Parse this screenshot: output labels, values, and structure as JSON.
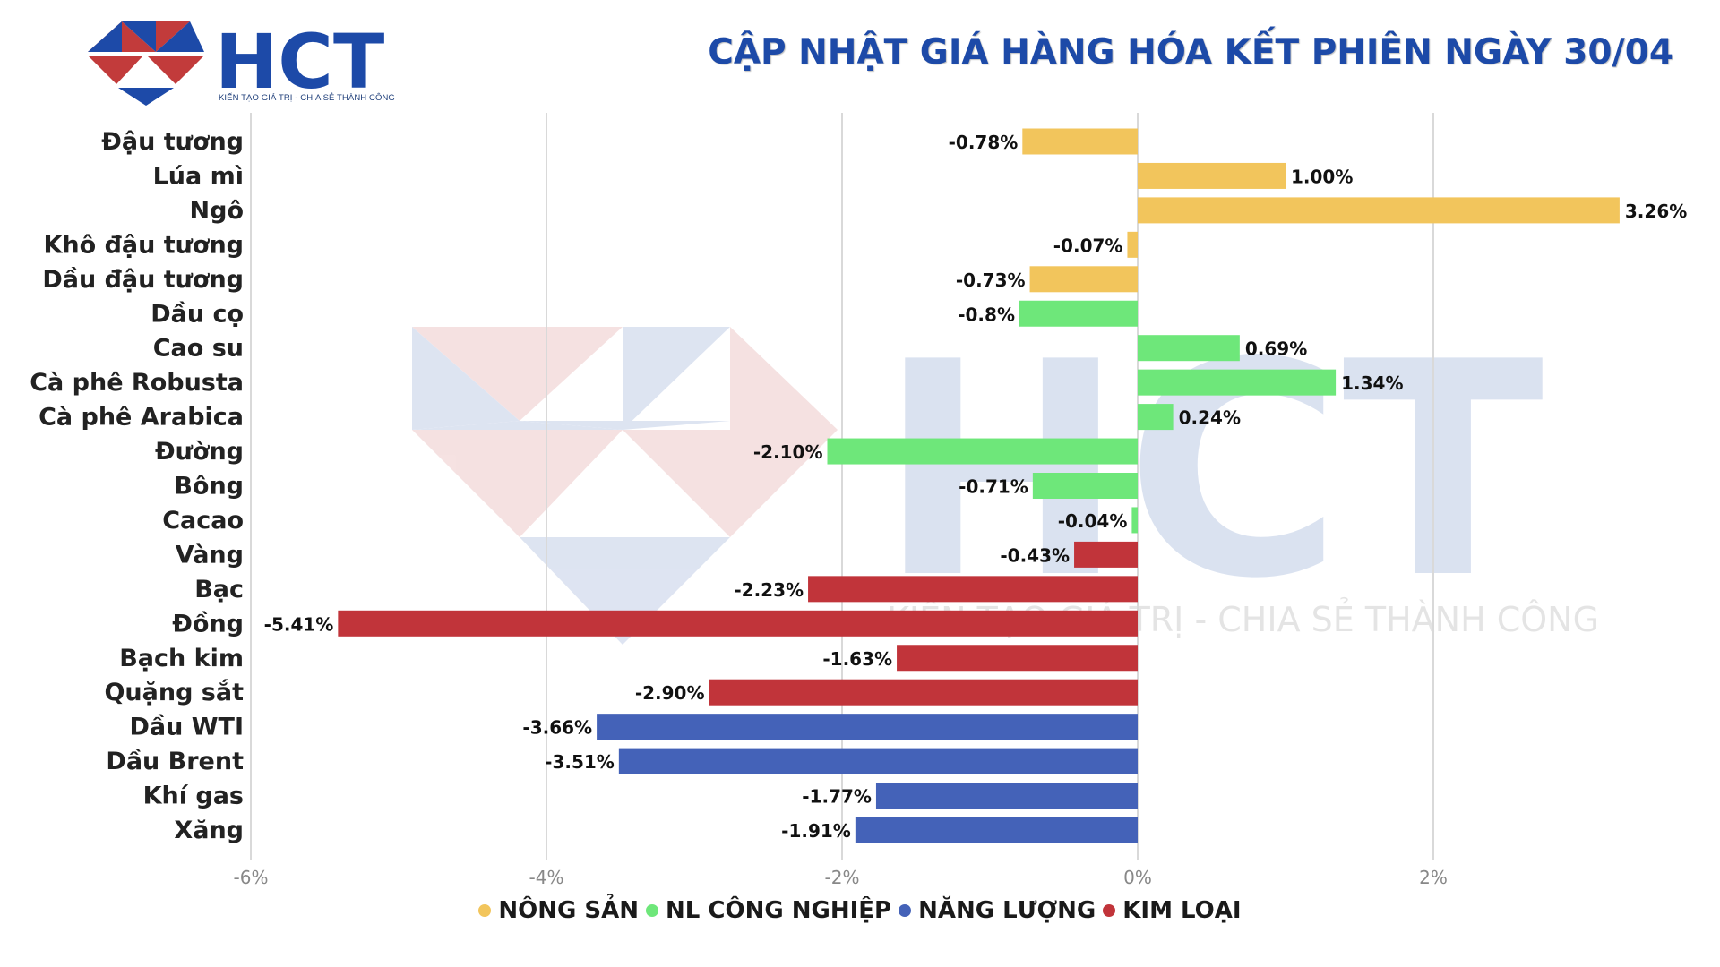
{
  "header": {
    "title": "CẬP NHẬT GIÁ HÀNG HÓA KẾT PHIÊN NGÀY 30/04",
    "logo_text": "HCT",
    "logo_tagline": "KIẾN TẠO GIÁ TRỊ - CHIA SẺ THÀNH CÔNG"
  },
  "watermark": {
    "text": "HCT",
    "tagline": "KIẾN TẠO GIÁ TRỊ - CHIA SẺ THÀNH CÔNG"
  },
  "colors": {
    "accent": "#1d4aa8",
    "NÔNG SẢN": "#f2c55c",
    "NL CÔNG NGHIỆP": "#6ee77a",
    "NĂNG LƯỢNG": "#4462b8",
    "KIM LOẠI": "#c1343a"
  },
  "chart_data": {
    "type": "bar",
    "orientation": "horizontal",
    "title": "CẬP NHẬT GIÁ HÀNG HÓA KẾT PHIÊN NGÀY 30/04",
    "categories": [
      "Đậu tương",
      "Lúa mì",
      "Ngô",
      "Khô đậu tương",
      "Dầu đậu tương",
      "Dầu cọ",
      "Cao su",
      "Cà phê Robusta",
      "Cà phê Arabica",
      "Đường",
      "Bông",
      "Cacao",
      "Vàng",
      "Bạc",
      "Đồng",
      "Bạch kim",
      "Quặng sắt",
      "Dầu WTI",
      "Dầu Brent",
      "Khí gas",
      "Xăng"
    ],
    "values": [
      -0.78,
      1.0,
      3.26,
      -0.07,
      -0.73,
      -0.8,
      0.69,
      1.34,
      0.24,
      -2.1,
      -0.71,
      -0.04,
      -0.43,
      -2.23,
      -5.41,
      -1.63,
      -2.9,
      -3.66,
      -3.51,
      -1.77,
      -1.91
    ],
    "value_labels": [
      "-0.78%",
      "1.00%",
      "3.26%",
      "-0.07%",
      "-0.73%",
      "-0.8%",
      "0.69%",
      "1.34%",
      "0.24%",
      "-2.10%",
      "-0.71%",
      "-0.04%",
      "-0.43%",
      "-2.23%",
      "-5.41%",
      "-1.63%",
      "-2.90%",
      "-3.66%",
      "-3.51%",
      "-1.77%",
      "-1.91%"
    ],
    "groups": [
      "NÔNG SẢN",
      "NÔNG SẢN",
      "NÔNG SẢN",
      "NÔNG SẢN",
      "NÔNG SẢN",
      "NL CÔNG NGHIỆP",
      "NL CÔNG NGHIỆP",
      "NL CÔNG NGHIỆP",
      "NL CÔNG NGHIỆP",
      "NL CÔNG NGHIỆP",
      "NL CÔNG NGHIỆP",
      "NL CÔNG NGHIỆP",
      "KIM LOẠI",
      "KIM LOẠI",
      "KIM LOẠI",
      "KIM LOẠI",
      "KIM LOẠI",
      "NĂNG LƯỢNG",
      "NĂNG LƯỢNG",
      "NĂNG LƯỢNG",
      "NĂNG LƯỢNG"
    ],
    "xlim": [
      -6,
      3.5
    ],
    "xticks": [
      -6,
      -4,
      -2,
      0,
      2
    ],
    "xtick_labels": [
      "-6%",
      "-4%",
      "-2%",
      "0%",
      "2%"
    ],
    "grid": "vertical",
    "xlabel": "",
    "ylabel": "",
    "legend": {
      "position": "bottom",
      "items": [
        "NÔNG SẢN",
        "NL CÔNG NGHIỆP",
        "NĂNG LƯỢNG",
        "KIM LOẠI"
      ]
    }
  }
}
